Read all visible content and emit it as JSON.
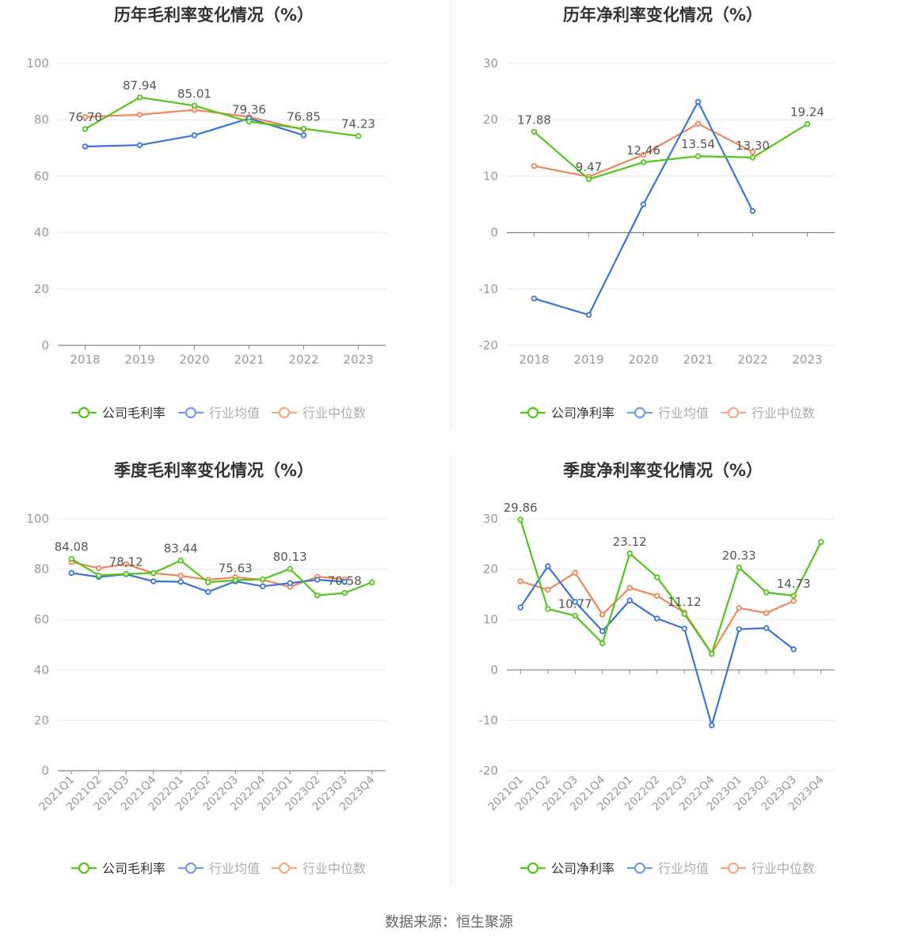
{
  "colors": {
    "company": "#52c41a",
    "avg": "#3b73d9",
    "median": "#f0845a",
    "grid": "#e6e8f0",
    "axis": "#888888"
  },
  "legend": {
    "company_gross": "公司毛利率",
    "company_net": "公司净利率",
    "avg": "行业均值",
    "median": "行业中位数"
  },
  "source": "数据来源：恒生聚源",
  "chart_data": [
    {
      "id": "annual-gross",
      "type": "line",
      "title": "历年毛利率变化情况（%）",
      "categories": [
        "2018",
        "2019",
        "2020",
        "2021",
        "2022",
        "2023"
      ],
      "ylim": [
        0,
        100
      ],
      "yticks": [
        0,
        20,
        40,
        60,
        80,
        100
      ],
      "zero_axis": false,
      "series": [
        {
          "name": "公司毛利率",
          "role": "company",
          "values": [
            76.7,
            87.94,
            85.01,
            79.36,
            76.85,
            74.23
          ],
          "labels": [
            "76.70",
            "87.94",
            "85.01",
            "79.36",
            "76.85",
            "74.23"
          ]
        },
        {
          "name": "行业均值",
          "role": "avg",
          "values": [
            70.5,
            71.0,
            74.5,
            80.5,
            74.5,
            null
          ]
        },
        {
          "name": "行业中位数",
          "role": "median",
          "values": [
            81.0,
            81.8,
            83.5,
            81.0,
            76.5,
            null
          ]
        }
      ]
    },
    {
      "id": "annual-net",
      "type": "line",
      "title": "历年净利率变化情况（%）",
      "categories": [
        "2018",
        "2019",
        "2020",
        "2021",
        "2022",
        "2023"
      ],
      "ylim": [
        -20,
        30
      ],
      "yticks": [
        -20,
        -10,
        0,
        10,
        20,
        30
      ],
      "zero_axis": true,
      "series": [
        {
          "name": "公司净利率",
          "role": "company",
          "values": [
            17.88,
            9.47,
            12.46,
            13.54,
            13.3,
            19.24
          ],
          "labels": [
            "17.88",
            "9.47",
            "12.46",
            "13.54",
            "13.30",
            "19.24"
          ]
        },
        {
          "name": "行业均值",
          "role": "avg",
          "values": [
            -11.7,
            -14.6,
            5.0,
            23.2,
            3.8,
            null
          ]
        },
        {
          "name": "行业中位数",
          "role": "median",
          "values": [
            11.8,
            9.9,
            13.8,
            19.3,
            14.3,
            null
          ]
        }
      ]
    },
    {
      "id": "quarterly-gross",
      "type": "line",
      "title": "季度毛利率变化情况（%）",
      "categories": [
        "2021Q1",
        "2021Q2",
        "2021Q3",
        "2021Q4",
        "2022Q1",
        "2022Q2",
        "2022Q3",
        "2022Q4",
        "2023Q1",
        "2023Q2",
        "2023Q3",
        "2023Q4"
      ],
      "ylim": [
        0,
        100
      ],
      "yticks": [
        0,
        20,
        40,
        60,
        80,
        100
      ],
      "zero_axis": false,
      "series": [
        {
          "name": "公司毛利率",
          "role": "company",
          "values": [
            84.08,
            77.5,
            78.12,
            78.5,
            83.44,
            74.8,
            75.63,
            76.0,
            80.13,
            69.6,
            70.58,
            74.8
          ],
          "labels": [
            "84.08",
            "",
            "78.12",
            "",
            "83.44",
            "",
            "75.63",
            "",
            "80.13",
            "",
            "70.58",
            ""
          ]
        },
        {
          "name": "行业均值",
          "role": "avg",
          "values": [
            78.5,
            76.9,
            78.0,
            75.2,
            75.0,
            71.0,
            75.2,
            73.2,
            74.5,
            75.8,
            75.0,
            null
          ]
        },
        {
          "name": "行业中位数",
          "role": "median",
          "values": [
            82.8,
            80.4,
            82.0,
            78.4,
            77.4,
            75.8,
            76.8,
            75.8,
            73.0,
            77.0,
            76.0,
            null
          ]
        }
      ]
    },
    {
      "id": "quarterly-net",
      "type": "line",
      "title": "季度净利率变化情况（%）",
      "categories": [
        "2021Q1",
        "2021Q2",
        "2021Q3",
        "2021Q4",
        "2022Q1",
        "2022Q2",
        "2022Q3",
        "2022Q4",
        "2023Q1",
        "2023Q2",
        "2023Q3",
        "2023Q4"
      ],
      "ylim": [
        -20,
        30
      ],
      "yticks": [
        -20,
        -10,
        0,
        10,
        20,
        30
      ],
      "zero_axis": true,
      "series": [
        {
          "name": "公司净利率",
          "role": "company",
          "values": [
            29.86,
            12.1,
            10.77,
            5.3,
            23.12,
            18.4,
            11.12,
            3.2,
            20.33,
            15.4,
            14.73,
            25.4
          ],
          "labels": [
            "29.86",
            "",
            "10.77",
            "",
            "23.12",
            "",
            "11.12",
            "",
            "20.33",
            "",
            "14.73",
            ""
          ]
        },
        {
          "name": "行业均值",
          "role": "avg",
          "values": [
            12.4,
            20.6,
            13.5,
            7.7,
            13.8,
            10.2,
            8.2,
            -11.0,
            8.1,
            8.3,
            4.1,
            null
          ]
        },
        {
          "name": "行业中位数",
          "role": "median",
          "values": [
            17.6,
            15.9,
            19.3,
            11.0,
            16.3,
            14.7,
            11.4,
            3.3,
            12.3,
            11.3,
            13.7,
            null
          ]
        }
      ]
    }
  ]
}
